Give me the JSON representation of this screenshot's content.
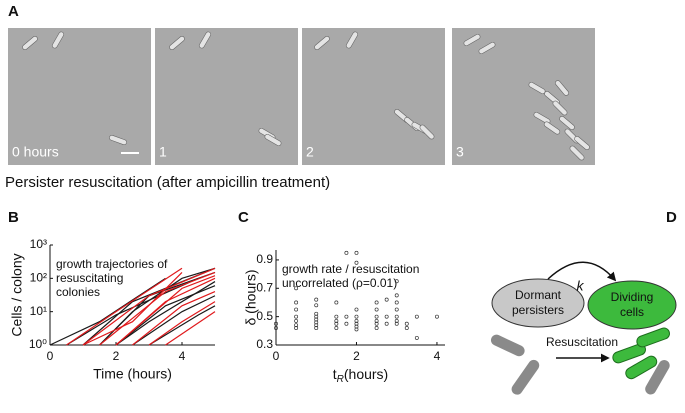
{
  "panel_labels": [
    "A",
    "B",
    "C",
    "D"
  ],
  "panel_a": {
    "frames": [
      "0 hours",
      "1",
      "2",
      "3"
    ],
    "caption": "Persister resuscitation (after ampicillin treatment)"
  },
  "chart_data": [
    {
      "type": "line",
      "x_label": "Time (hours)",
      "y_label": "Cells / colony",
      "annotation": [
        "growth trajectories of",
        "resuscitating",
        "colonies"
      ],
      "xlim": [
        0,
        5
      ],
      "xticks": [
        0,
        2,
        4
      ],
      "ylim": [
        1,
        1000
      ],
      "log_y": true,
      "yticks": [
        {
          "value": 1,
          "label": "10⁰"
        },
        {
          "value": 10,
          "label": "10¹"
        },
        {
          "value": 100,
          "label": "10²"
        },
        {
          "value": 1000,
          "label": "10³"
        }
      ],
      "series": [
        {
          "color": "#1a1a1a",
          "x": [
            0.5,
            2,
            4.5
          ],
          "values": [
            1,
            8,
            100
          ]
        },
        {
          "color": "#1a1a1a",
          "x": [
            1,
            2.5,
            5
          ],
          "values": [
            1,
            20,
            200
          ]
        },
        {
          "color": "#1a1a1a",
          "x": [
            1.5,
            3,
            5
          ],
          "values": [
            1,
            30,
            150
          ]
        },
        {
          "color": "#1a1a1a",
          "x": [
            2,
            3.5,
            5
          ],
          "values": [
            1,
            15,
            60
          ]
        },
        {
          "color": "#1a1a1a",
          "x": [
            2.5,
            4,
            5
          ],
          "values": [
            1,
            10,
            30
          ]
        },
        {
          "color": "#1a1a1a",
          "x": [
            3,
            4.5,
            5
          ],
          "values": [
            1,
            8,
            15
          ]
        },
        {
          "color": "#1a1a1a",
          "x": [
            1.5,
            2.5,
            4,
            5
          ],
          "values": [
            1,
            10,
            100,
            200
          ]
        },
        {
          "color": "#1a1a1a",
          "x": [
            2,
            3,
            5
          ],
          "values": [
            1,
            5,
            80
          ]
        },
        {
          "color": "#1a1a1a",
          "x": [
            0,
            1.5,
            3.5
          ],
          "values": [
            1,
            5,
            100
          ]
        },
        {
          "color": "#e0191c",
          "x": [
            0.5,
            2,
            4
          ],
          "values": [
            1,
            10,
            200
          ]
        },
        {
          "color": "#e0191c",
          "x": [
            1,
            3,
            5
          ],
          "values": [
            1,
            30,
            200
          ]
        },
        {
          "color": "#e0191c",
          "x": [
            1.5,
            3.5,
            5
          ],
          "values": [
            1,
            40,
            150
          ]
        },
        {
          "color": "#e0191c",
          "x": [
            2,
            3.5,
            5
          ],
          "values": [
            1,
            20,
            100
          ]
        },
        {
          "color": "#e0191c",
          "x": [
            2.5,
            4,
            5
          ],
          "values": [
            1,
            15,
            40
          ]
        },
        {
          "color": "#e0191c",
          "x": [
            3,
            4,
            5
          ],
          "values": [
            1,
            5,
            20
          ]
        },
        {
          "color": "#e0191c",
          "x": [
            1,
            2.5,
            4
          ],
          "values": [
            1,
            5,
            150
          ]
        },
        {
          "color": "#e0191c",
          "x": [
            2,
            4,
            5
          ],
          "values": [
            1,
            50,
            120
          ]
        },
        {
          "color": "#e0191c",
          "x": [
            3.5,
            5
          ],
          "values": [
            1,
            10
          ]
        }
      ]
    },
    {
      "type": "scatter",
      "x_label": [
        "t",
        "R",
        "(hours)"
      ],
      "y_label": "δ (hours)",
      "annotation": [
        "growth rate / resuscitation",
        "uncorrelated (ρ=0.01)"
      ],
      "xlim": [
        0,
        4.2
      ],
      "xticks": [
        0,
        2,
        4
      ],
      "ylim": [
        0.3,
        0.97
      ],
      "yticks": [
        0.3,
        0.5,
        0.7,
        0.9
      ],
      "color": "#333333",
      "x": [
        0,
        0,
        0.5,
        0.5,
        0.5,
        0.5,
        0.5,
        0.5,
        0.5,
        1,
        1,
        1,
        1,
        1,
        1,
        1,
        1,
        1.5,
        1.5,
        1.5,
        1.5,
        1.5,
        1.75,
        1.75,
        1.75,
        2,
        2,
        2,
        2,
        2,
        2,
        2,
        2,
        2.5,
        2.5,
        2.5,
        2.5,
        2.5,
        2.5,
        2.75,
        2.75,
        2.75,
        3,
        3,
        3,
        3,
        3,
        3,
        3,
        3.25,
        3.25,
        3.5,
        3.5,
        4
      ],
      "values": [
        0.42,
        0.45,
        0.7,
        0.6,
        0.55,
        0.5,
        0.47,
        0.44,
        0.42,
        0.62,
        0.58,
        0.52,
        0.5,
        0.48,
        0.46,
        0.44,
        0.42,
        0.6,
        0.5,
        0.47,
        0.45,
        0.42,
        0.95,
        0.5,
        0.45,
        0.95,
        0.88,
        0.55,
        0.5,
        0.47,
        0.45,
        0.43,
        0.41,
        0.6,
        0.55,
        0.5,
        0.47,
        0.45,
        0.42,
        0.62,
        0.5,
        0.45,
        0.75,
        0.65,
        0.6,
        0.55,
        0.5,
        0.47,
        0.45,
        0.45,
        0.42,
        0.5,
        0.35,
        0.5
      ]
    }
  ],
  "panel_d": {
    "dormant": [
      "Dormant",
      "persisters"
    ],
    "rate": "k",
    "dividing": [
      "Dividing",
      "cells"
    ],
    "arrow_label": "Resuscitation"
  }
}
